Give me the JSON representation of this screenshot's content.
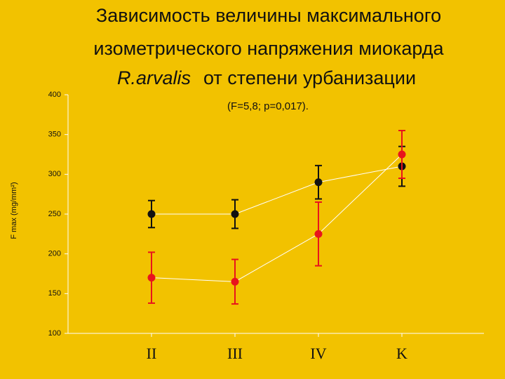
{
  "chart_data": {
    "type": "line",
    "title_lines": [
      "Зависимость величины максимального",
      "изометрического напряжения миокарда"
    ],
    "title_species": "R.arvalis",
    "title_rest": "от степени урбанизации",
    "subtitle": "(F=5,8; p=0,017).",
    "y_label": "F max (mg/mm²)",
    "categories": [
      "II",
      "III",
      "IV",
      "K"
    ],
    "series": [
      {
        "color": "#111111",
        "values": [
          250,
          250,
          290,
          310
        ],
        "errors": [
          17,
          18,
          21,
          25
        ]
      },
      {
        "color": "#e8141c",
        "values": [
          170,
          165,
          225,
          325
        ],
        "errors": [
          32,
          28,
          40,
          30
        ]
      }
    ],
    "ylim": [
      100,
      400
    ],
    "yticks": [
      100,
      150,
      200,
      250,
      300,
      350,
      400
    ]
  }
}
